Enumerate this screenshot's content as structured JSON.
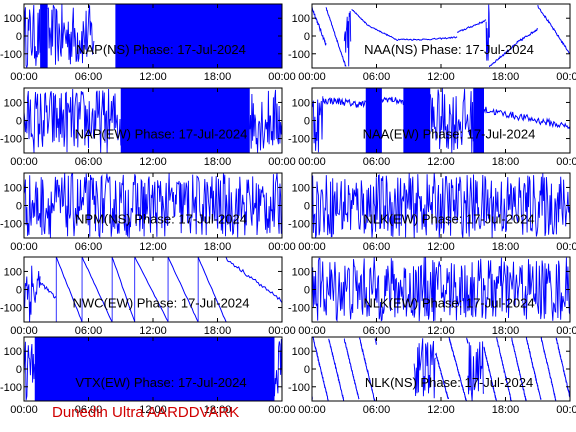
{
  "footer": "Dunedin Ultra AARDDVARK",
  "chart_data": [
    {
      "type": "line",
      "label": "NAP(NS) Phase: 17-Jul-2024",
      "x_ticks": [
        "00:00",
        "06:00",
        "12:00",
        "18:00",
        "00:00"
      ],
      "y_ticks": [
        "100",
        "0",
        "-100"
      ],
      "ylim": [
        -180,
        180
      ],
      "xlim": [
        0,
        24
      ],
      "color": "#0000ff",
      "pattern": "block",
      "seg": [
        [
          0,
          1.5,
          "noise"
        ],
        [
          1.5,
          2.2,
          "solid"
        ],
        [
          2.2,
          6.5,
          "noise"
        ],
        [
          6.5,
          8.5,
          "gap"
        ],
        [
          8.5,
          24,
          "solid"
        ]
      ]
    },
    {
      "type": "line",
      "label": "NAA(NS) Phase: 17-Jul-2024",
      "x_ticks": [
        "00:00",
        "06:00",
        "12:00",
        "18:00",
        "00:00"
      ],
      "y_ticks": [
        "100",
        "0",
        "-100"
      ],
      "ylim": [
        -180,
        180
      ],
      "xlim": [
        0,
        24
      ],
      "color": "#0000ff",
      "pattern": "naa_ns"
    },
    {
      "type": "line",
      "label": "NAP(EW) Phase: 17-Jul-2024",
      "x_ticks": [
        "00:00",
        "06:00",
        "12:00",
        "18:00",
        "00:00"
      ],
      "y_ticks": [
        "100",
        "0",
        "-100"
      ],
      "ylim": [
        -180,
        180
      ],
      "xlim": [
        0,
        24
      ],
      "color": "#0000ff",
      "pattern": "block",
      "seg": [
        [
          0,
          9,
          "noise"
        ],
        [
          9,
          21,
          "solid"
        ],
        [
          21,
          24,
          "noise"
        ]
      ]
    },
    {
      "type": "line",
      "label": "NAA(EW) Phase: 17-Jul-2024",
      "x_ticks": [
        "00:00",
        "06:00",
        "12:00",
        "18:00",
        "00:00"
      ],
      "y_ticks": [
        "100",
        "0",
        "-100"
      ],
      "ylim": [
        -180,
        180
      ],
      "xlim": [
        0,
        24
      ],
      "color": "#0000ff",
      "pattern": "naa_ew"
    },
    {
      "type": "line",
      "label": "NPM(NS) Phase: 17-Jul-2024",
      "x_ticks": [
        "00:00",
        "06:00",
        "12:00",
        "18:00",
        "00:00"
      ],
      "y_ticks": [
        "100",
        "0",
        "-100"
      ],
      "ylim": [
        -180,
        180
      ],
      "xlim": [
        0,
        24
      ],
      "color": "#0000ff",
      "pattern": "block",
      "seg": [
        [
          0,
          24,
          "noise"
        ]
      ]
    },
    {
      "type": "line",
      "label": "NLK(EW) Phase: 17-Jul-2024",
      "x_ticks": [
        "00:00",
        "06:00",
        "12:00",
        "18:00",
        "00:00"
      ],
      "y_ticks": [
        "100",
        "0",
        "-100"
      ],
      "ylim": [
        -180,
        180
      ],
      "xlim": [
        0,
        24
      ],
      "color": "#0000ff",
      "pattern": "block",
      "seg": [
        [
          0,
          24,
          "noise"
        ]
      ]
    },
    {
      "type": "line",
      "label": "NWC(EW) Phase: 17-Jul-2024",
      "x_ticks": [
        "00:00",
        "06:00",
        "12:00",
        "18:00",
        "00:00"
      ],
      "y_ticks": [
        "100",
        "0",
        "-100"
      ],
      "ylim": [
        -180,
        180
      ],
      "xlim": [
        0,
        24
      ],
      "color": "#0000ff",
      "pattern": "nwc"
    },
    {
      "type": "line",
      "label": "NLK(EW) Phase: 17-Jul-2024",
      "x_ticks": [
        "00:00",
        "06:00",
        "12:00",
        "18:00",
        "00:00"
      ],
      "y_ticks": [
        "100",
        "0",
        "-100"
      ],
      "ylim": [
        -180,
        180
      ],
      "xlim": [
        0,
        24
      ],
      "color": "#0000ff",
      "pattern": "block",
      "seg": [
        [
          0,
          24,
          "noise"
        ]
      ]
    },
    {
      "type": "line",
      "label": "VTX(EW) Phase: 17-Jul-2024",
      "x_ticks": [
        "00:00",
        "06:00",
        "12:00",
        "18:00",
        "00:00"
      ],
      "y_ticks": [
        "100",
        "0",
        "-100"
      ],
      "ylim": [
        -180,
        180
      ],
      "xlim": [
        0,
        24
      ],
      "color": "#0000ff",
      "pattern": "block",
      "seg": [
        [
          0,
          1,
          "noise"
        ],
        [
          1,
          23.3,
          "solid"
        ],
        [
          23.3,
          24,
          "noise"
        ]
      ]
    },
    {
      "type": "line",
      "label": "NLK(NS) Phase: 17-Jul-2024",
      "x_ticks": [
        "00:00",
        "06:00",
        "12:00",
        "18:00",
        "00:00"
      ],
      "y_ticks": [
        "100",
        "0",
        "-100"
      ],
      "ylim": [
        -180,
        180
      ],
      "xlim": [
        0,
        24
      ],
      "color": "#0000ff",
      "pattern": "saw"
    }
  ]
}
